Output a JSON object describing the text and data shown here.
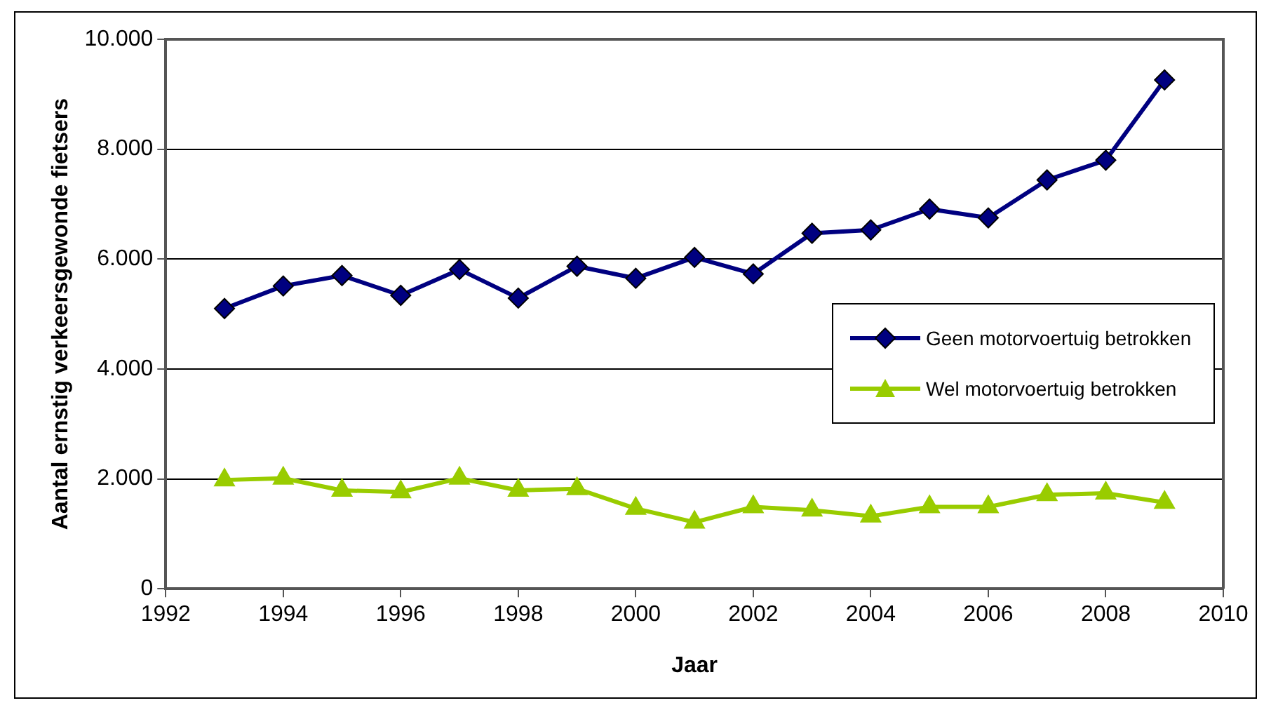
{
  "chart_data": {
    "type": "line",
    "xlabel": "Jaar",
    "ylabel": "Aantal ernstig verkeersgewonde fietsers",
    "x": [
      1993,
      1994,
      1995,
      1996,
      1997,
      1998,
      1999,
      2000,
      2001,
      2002,
      2003,
      2004,
      2005,
      2006,
      2007,
      2008,
      2009
    ],
    "series": [
      {
        "name": "Geen motorvoertuig betrokken",
        "color": "#000080",
        "marker": "diamond",
        "values": [
          5100,
          5510,
          5700,
          5340,
          5810,
          5290,
          5870,
          5650,
          6030,
          5730,
          6470,
          6530,
          6910,
          6750,
          7440,
          7800,
          9260
        ]
      },
      {
        "name": "Wel motorvoertuig betrokken",
        "color": "#99cc00",
        "marker": "triangle",
        "values": [
          1980,
          2010,
          1790,
          1760,
          2010,
          1790,
          1820,
          1460,
          1210,
          1490,
          1430,
          1320,
          1490,
          1490,
          1710,
          1740,
          1570
        ]
      }
    ],
    "xlim": [
      1992,
      2010
    ],
    "xticks": [
      1992,
      1994,
      1996,
      1998,
      2000,
      2002,
      2004,
      2006,
      2008,
      2010
    ],
    "ylim": [
      0,
      10000
    ],
    "yticks": [
      0,
      {
        "value": 2000,
        "label": "2.000"
      },
      {
        "value": 4000,
        "label": "4.000"
      },
      {
        "value": 6000,
        "label": "6.000"
      },
      {
        "value": 8000,
        "label": "8.000"
      },
      {
        "value": 10000,
        "label": "10.000"
      }
    ],
    "grid": "y",
    "legend": "center right"
  }
}
